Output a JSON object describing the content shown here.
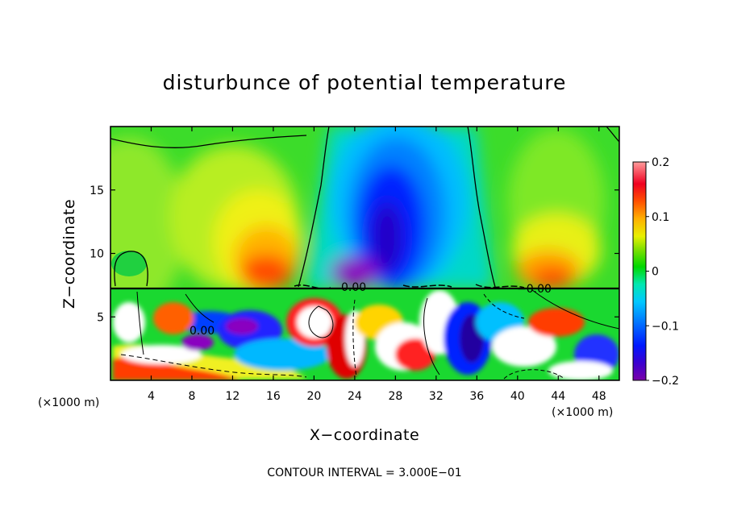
{
  "chart_data": {
    "type": "heatmap",
    "title": "disturbunce of potential temperature",
    "xlabel": "X−coordinate",
    "ylabel": "Z−coordinate",
    "x_unit_label": "(×1000 m)",
    "x_unit_label_right": "(×1000 m)",
    "xlim": [
      0,
      50
    ],
    "ylim": [
      0,
      20
    ],
    "xticks": [
      4,
      8,
      12,
      16,
      20,
      24,
      28,
      32,
      36,
      40,
      44,
      48
    ],
    "xtick_labels": [
      "4",
      "8",
      "12",
      "16",
      "20",
      "24",
      "28",
      "32",
      "36",
      "40",
      "44",
      "48"
    ],
    "yticks": [
      5,
      10,
      15
    ],
    "ytick_labels": [
      "5",
      "10",
      "15"
    ],
    "colorbar": {
      "range": [
        -0.2,
        0.2
      ],
      "ticks": [
        0.2,
        0.1,
        0,
        -0.1,
        -0.2
      ],
      "tick_labels": [
        "0.2",
        "0.1",
        "0",
        "−0.1",
        "−0.2"
      ]
    },
    "contour_labels": [
      {
        "text": "0.00",
        "x": 24.5,
        "z": 7.4
      },
      {
        "text": "−0.00",
        "x": 42.0,
        "z": 7.2
      },
      {
        "text": "0.00",
        "x": 9.5,
        "z": 4.0
      }
    ],
    "upper_layer_features": [
      {
        "name": "warm anomaly",
        "x_center": 14.5,
        "z_center": 10.5,
        "value": 0.12
      },
      {
        "name": "cold anomaly",
        "x_center": 28.5,
        "z_center": 12.0,
        "value": -0.18
      },
      {
        "name": "warm anomaly",
        "x_center": 43.5,
        "z_center": 8.5,
        "value": 0.1
      }
    ],
    "interface_height": 7.2,
    "footer": "CONTOUR INTERVAL = 3.000E−01"
  }
}
